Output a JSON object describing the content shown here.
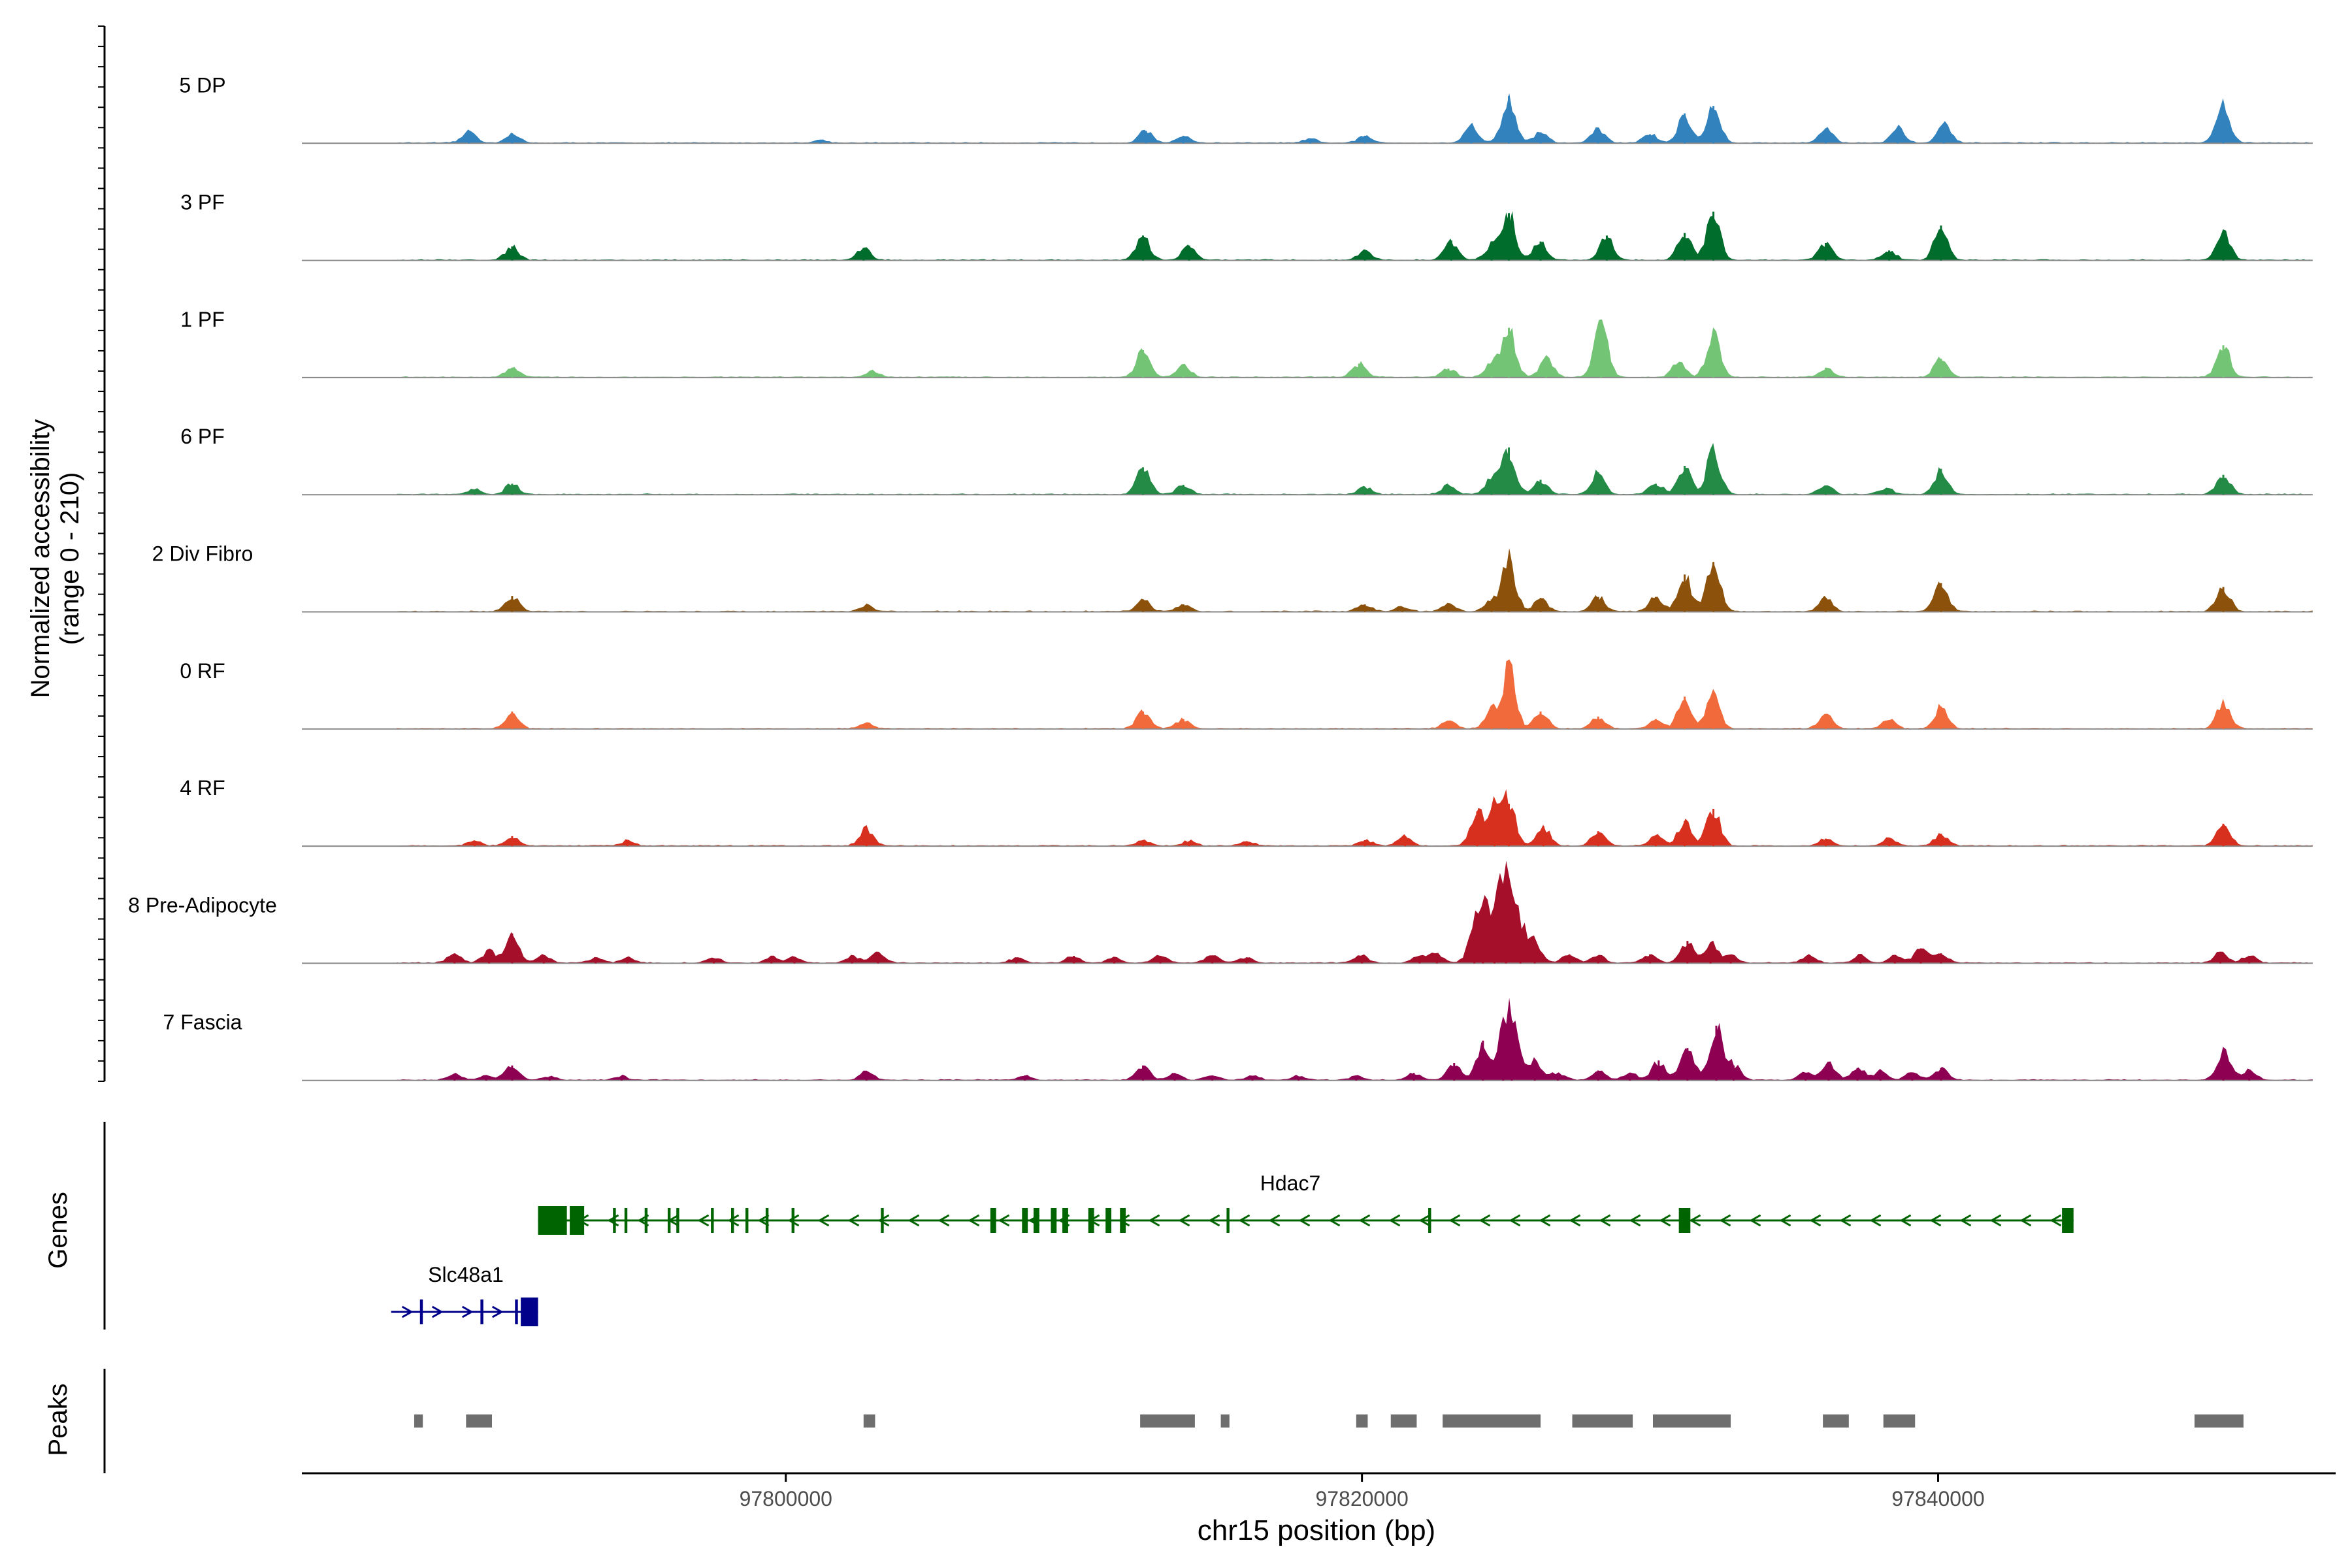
{
  "chart_data": {
    "type": "coverage",
    "title": "",
    "ylabel_line1": "Normalized accessibility",
    "ylabel_line2": "(range 0 - 210)",
    "ylim": [
      0,
      210
    ],
    "xlabel": "chr15 position (bp)",
    "xlim": [
      97783200,
      97853800
    ],
    "x_ticks": [
      {
        "value": 97800000,
        "label": "97800000"
      },
      {
        "value": 97820000,
        "label": "97820000"
      },
      {
        "value": 97840000,
        "label": "97840000"
      }
    ],
    "coverage_region": [
      97786500,
      97853000
    ],
    "tracks": [
      {
        "name": "5 DP",
        "color": "#3182BD",
        "peaks": [
          [
            97789000,
            25
          ],
          [
            97790500,
            20
          ],
          [
            97801200,
            6
          ],
          [
            97812500,
            25
          ],
          [
            97813800,
            15
          ],
          [
            97818200,
            8
          ],
          [
            97820100,
            15
          ],
          [
            97823800,
            38
          ],
          [
            97825100,
            95
          ],
          [
            97826200,
            22
          ],
          [
            97828200,
            30
          ],
          [
            97830000,
            18
          ],
          [
            97831200,
            60
          ],
          [
            97832200,
            75
          ],
          [
            97836100,
            30
          ],
          [
            97838600,
            32
          ],
          [
            97840200,
            38
          ],
          [
            97849900,
            80
          ]
        ]
      },
      {
        "name": "3 PF",
        "color": "#006D2C",
        "peaks": [
          [
            97790500,
            28
          ],
          [
            97802700,
            25
          ],
          [
            97812400,
            50
          ],
          [
            97814000,
            30
          ],
          [
            97820100,
            20
          ],
          [
            97823100,
            40
          ],
          [
            97824500,
            30
          ],
          [
            97825100,
            95
          ],
          [
            97826200,
            38
          ],
          [
            97828500,
            50
          ],
          [
            97831200,
            55
          ],
          [
            97832200,
            98
          ],
          [
            97836100,
            35
          ],
          [
            97838300,
            20
          ],
          [
            97840100,
            70
          ],
          [
            97849900,
            60
          ]
        ]
      },
      {
        "name": "1 PF",
        "color": "#74C476",
        "peaks": [
          [
            97790500,
            20
          ],
          [
            97803000,
            12
          ],
          [
            97812400,
            55
          ],
          [
            97813800,
            25
          ],
          [
            97819900,
            28
          ],
          [
            97823000,
            18
          ],
          [
            97824500,
            30
          ],
          [
            97825100,
            100
          ],
          [
            97826400,
            40
          ],
          [
            97828300,
            110
          ],
          [
            97831000,
            30
          ],
          [
            97832200,
            88
          ],
          [
            97836100,
            20
          ],
          [
            97840100,
            38
          ],
          [
            97849900,
            65
          ]
        ]
      },
      {
        "name": "6 PF",
        "color": "#238B45",
        "peaks": [
          [
            97789200,
            10
          ],
          [
            97790500,
            22
          ],
          [
            97812400,
            55
          ],
          [
            97813800,
            20
          ],
          [
            97820100,
            15
          ],
          [
            97823000,
            18
          ],
          [
            97824500,
            32
          ],
          [
            97825100,
            95
          ],
          [
            97826200,
            30
          ],
          [
            97828200,
            45
          ],
          [
            97830200,
            22
          ],
          [
            97831200,
            58
          ],
          [
            97832200,
            92
          ],
          [
            97836100,
            18
          ],
          [
            97838200,
            12
          ],
          [
            97840100,
            52
          ],
          [
            97849900,
            40
          ]
        ]
      },
      {
        "name": "2 Div Fibro",
        "color": "#8C510A",
        "peaks": [
          [
            97790500,
            32
          ],
          [
            97802800,
            12
          ],
          [
            97812400,
            25
          ],
          [
            97813800,
            15
          ],
          [
            97820100,
            15
          ],
          [
            97821400,
            10
          ],
          [
            97823000,
            15
          ],
          [
            97824500,
            25
          ],
          [
            97825100,
            110
          ],
          [
            97826200,
            28
          ],
          [
            97828200,
            30
          ],
          [
            97830200,
            30
          ],
          [
            97831200,
            75
          ],
          [
            97832200,
            100
          ],
          [
            97836100,
            28
          ],
          [
            97840100,
            58
          ],
          [
            97849900,
            50
          ]
        ]
      },
      {
        "name": "0 RF",
        "color": "#F16A3B",
        "peaks": [
          [
            97790500,
            35
          ],
          [
            97802800,
            12
          ],
          [
            97812400,
            35
          ],
          [
            97813800,
            20
          ],
          [
            97823000,
            15
          ],
          [
            97824500,
            35
          ],
          [
            97825100,
            125
          ],
          [
            97826200,
            35
          ],
          [
            97828200,
            25
          ],
          [
            97830200,
            20
          ],
          [
            97831200,
            65
          ],
          [
            97832200,
            70
          ],
          [
            97836100,
            28
          ],
          [
            97838300,
            18
          ],
          [
            97840100,
            45
          ],
          [
            97849900,
            55
          ]
        ]
      },
      {
        "name": "4 RF",
        "color": "#D7301F",
        "peaks": [
          [
            97789200,
            10
          ],
          [
            97790500,
            20
          ],
          [
            97794500,
            10
          ],
          [
            97802800,
            35
          ],
          [
            97812400,
            12
          ],
          [
            97814000,
            10
          ],
          [
            97816000,
            10
          ],
          [
            97820100,
            12
          ],
          [
            97821500,
            20
          ],
          [
            97824000,
            70
          ],
          [
            97824600,
            80
          ],
          [
            97825100,
            85
          ],
          [
            97826300,
            40
          ],
          [
            97828200,
            30
          ],
          [
            97830200,
            20
          ],
          [
            97831200,
            50
          ],
          [
            97832200,
            75
          ],
          [
            97836100,
            15
          ],
          [
            97838300,
            15
          ],
          [
            97840100,
            25
          ],
          [
            97849900,
            45
          ]
        ]
      },
      {
        "name": "8 Pre-Adipocyte",
        "color": "#A50F29",
        "peaks": [
          [
            97788500,
            20
          ],
          [
            97789700,
            25
          ],
          [
            97790500,
            60
          ],
          [
            97791600,
            15
          ],
          [
            97793400,
            10
          ],
          [
            97794500,
            12
          ],
          [
            97797500,
            10
          ],
          [
            97799500,
            12
          ],
          [
            97800300,
            12
          ],
          [
            97802300,
            15
          ],
          [
            97803200,
            20
          ],
          [
            97808000,
            10
          ],
          [
            97810000,
            15
          ],
          [
            97811400,
            12
          ],
          [
            97813000,
            15
          ],
          [
            97814800,
            15
          ],
          [
            97816000,
            12
          ],
          [
            97820000,
            15
          ],
          [
            97822000,
            15
          ],
          [
            97822600,
            20
          ],
          [
            97823900,
            50
          ],
          [
            97824200,
            90
          ],
          [
            97824600,
            75
          ],
          [
            97825000,
            160
          ],
          [
            97825500,
            70
          ],
          [
            97826000,
            40
          ],
          [
            97827200,
            18
          ],
          [
            97828200,
            15
          ],
          [
            97830000,
            18
          ],
          [
            97831300,
            45
          ],
          [
            97832100,
            40
          ],
          [
            97832800,
            15
          ],
          [
            97835500,
            15
          ],
          [
            97837300,
            15
          ],
          [
            97838500,
            15
          ],
          [
            97839400,
            30
          ],
          [
            97840100,
            20
          ],
          [
            97849800,
            20
          ],
          [
            97850800,
            15
          ]
        ]
      },
      {
        "name": "7 Fascia",
        "color": "#8E0152",
        "peaks": [
          [
            97788500,
            12
          ],
          [
            97789600,
            10
          ],
          [
            97790500,
            30
          ],
          [
            97791800,
            8
          ],
          [
            97794300,
            8
          ],
          [
            97802800,
            18
          ],
          [
            97808300,
            10
          ],
          [
            97812400,
            30
          ],
          [
            97813500,
            15
          ],
          [
            97814800,
            10
          ],
          [
            97816200,
            8
          ],
          [
            97817800,
            8
          ],
          [
            97819800,
            8
          ],
          [
            97821800,
            15
          ],
          [
            97823200,
            35
          ],
          [
            97824200,
            80
          ],
          [
            97824900,
            70
          ],
          [
            97825200,
            120
          ],
          [
            97826000,
            40
          ],
          [
            97826800,
            15
          ],
          [
            97828200,
            20
          ],
          [
            97829300,
            15
          ],
          [
            97830300,
            40
          ],
          [
            97831300,
            65
          ],
          [
            97832300,
            110
          ],
          [
            97832900,
            30
          ],
          [
            97835400,
            15
          ],
          [
            97836200,
            35
          ],
          [
            97837200,
            25
          ],
          [
            97838000,
            18
          ],
          [
            97839100,
            15
          ],
          [
            97840100,
            25
          ],
          [
            97849900,
            60
          ],
          [
            97850800,
            20
          ]
        ]
      }
    ],
    "genes_label": "Genes",
    "genes": [
      {
        "name": "Slc48a1",
        "strand": "+",
        "color": "#00008B",
        "start": 97786300,
        "end": 97791400,
        "row": 2,
        "thick": [
          [
            97790800,
            97791400
          ]
        ],
        "blocks": [
          [
            97787300,
            97787400
          ],
          [
            97789400,
            97789500
          ],
          [
            97790600,
            97790700
          ]
        ]
      },
      {
        "name": "Hdac7",
        "strand": "-",
        "color": "#006400",
        "start": 97791400,
        "end": 97844700,
        "row": 1,
        "thick": [
          [
            97791400,
            97792400
          ],
          [
            97792500,
            97793000
          ]
        ],
        "blocks": [
          [
            97794000,
            97794100
          ],
          [
            97794400,
            97794500
          ],
          [
            97795100,
            97795200
          ],
          [
            97795900,
            97796000
          ],
          [
            97796200,
            97796300
          ],
          [
            97797400,
            97797500
          ],
          [
            97798100,
            97798200
          ],
          [
            97798600,
            97798700
          ],
          [
            97799300,
            97799400
          ],
          [
            97800200,
            97800300
          ],
          [
            97803300,
            97803400
          ],
          [
            97807100,
            97807300
          ],
          [
            97808200,
            97808400
          ],
          [
            97808600,
            97808800
          ],
          [
            97809200,
            97809400
          ],
          [
            97809600,
            97809800
          ],
          [
            97810500,
            97810700
          ],
          [
            97811100,
            97811300
          ],
          [
            97811600,
            97811800
          ],
          [
            97815300,
            97815400
          ],
          [
            97822300,
            97822400
          ],
          [
            97831000,
            97831400
          ],
          [
            97844300,
            97844700
          ]
        ]
      }
    ],
    "peaks_label": "Peaks",
    "peak_regions": [
      [
        97787100,
        97787400
      ],
      [
        97788900,
        97789800
      ],
      [
        97802700,
        97803100
      ],
      [
        97812300,
        97814200
      ],
      [
        97815100,
        97815400
      ],
      [
        97819800,
        97820200
      ],
      [
        97821000,
        97821900
      ],
      [
        97822800,
        97826200
      ],
      [
        97827300,
        97829400
      ],
      [
        97830100,
        97832800
      ],
      [
        97836000,
        97836900
      ],
      [
        97838100,
        97839200
      ],
      [
        97848900,
        97850600
      ]
    ]
  }
}
